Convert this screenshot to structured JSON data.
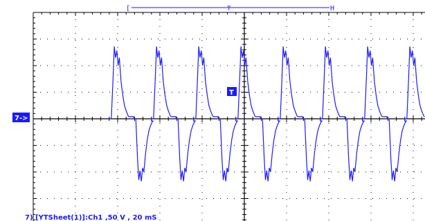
{
  "colors": {
    "trace": "#1a1aff",
    "marker_bg": "#1a1aff",
    "marker_text": "#ffffff",
    "grid": "#000000",
    "background": "#ffffff"
  },
  "ui": {
    "channel_marker": "7->",
    "trigger_marker": "T",
    "timebar_left_bracket": "[",
    "timebar_right_bracket": "H",
    "timebar_center": "T"
  },
  "chart_data": {
    "type": "line",
    "title": "",
    "xlabel": "",
    "ylabel": "",
    "grid": true,
    "divisions": {
      "x": 10,
      "y": 8
    },
    "xlim": [
      -5,
      5
    ],
    "ylim": [
      -4,
      4
    ],
    "readout_label": "7) [YTSheet(1)]:Ch1 ,50 V , 20 mS",
    "scale": {
      "volts_per_div": 50,
      "time_per_div": "20 mS"
    },
    "waveform": {
      "period_div": 1,
      "first_rising_edge_div": -2.2,
      "rising_edge_shape": [
        [
          0,
          0
        ],
        [
          0.05,
          0
        ],
        [
          0.09,
          1.5
        ],
        [
          0.12,
          2.72
        ],
        [
          0.15,
          2.3
        ],
        [
          0.18,
          2.56
        ],
        [
          0.21,
          2.0
        ],
        [
          0.24,
          2.3
        ],
        [
          0.28,
          1.4
        ],
        [
          0.32,
          0.9
        ],
        [
          0.36,
          0.5
        ],
        [
          0.4,
          0.3
        ],
        [
          0.45,
          0.1
        ]
      ],
      "high_level_div": 0.08,
      "high_end_div": 0.58,
      "low_level_div": -0.08,
      "falling_edge_shape": [
        [
          0,
          0
        ],
        [
          0.05,
          0
        ],
        [
          0.09,
          -1.5
        ],
        [
          0.12,
          -2.3
        ],
        [
          0.15,
          -1.95
        ],
        [
          0.18,
          -2.35
        ],
        [
          0.21,
          -1.85
        ],
        [
          0.24,
          -2.0
        ],
        [
          0.28,
          -1.3
        ],
        [
          0.32,
          -0.8
        ],
        [
          0.36,
          -0.45
        ],
        [
          0.4,
          -0.25
        ],
        [
          0.45,
          -0.08
        ]
      ]
    }
  }
}
